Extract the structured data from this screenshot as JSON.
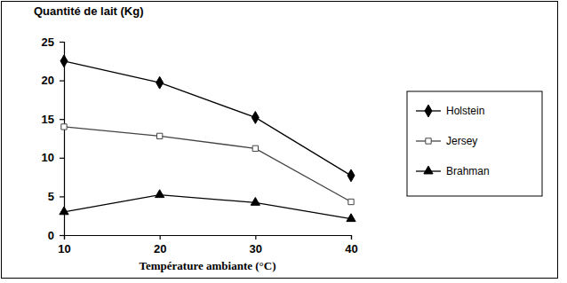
{
  "chart_data": {
    "type": "line",
    "y_label": "Quantité de lait (Kg)",
    "x_label": "Température ambiante (°C)",
    "x": [
      10,
      20,
      30,
      40
    ],
    "xlim": [
      10,
      40
    ],
    "xticks": [
      10,
      20,
      30,
      40
    ],
    "ylim": [
      0,
      25
    ],
    "yticks": [
      0,
      5,
      10,
      15,
      20,
      25
    ],
    "grid": false,
    "legend": "right",
    "series": [
      {
        "name": "Holstein",
        "color": "#000000",
        "marker": "diamond",
        "values": [
          22.5,
          19.7,
          15.2,
          7.7
        ]
      },
      {
        "name": "Jersey",
        "color": "#444444",
        "marker": "square-open",
        "values": [
          14,
          12.8,
          11.2,
          4.3
        ]
      },
      {
        "name": "Brahman",
        "color": "#000000",
        "marker": "triangle",
        "values": [
          3,
          5.2,
          4.2,
          2.1
        ]
      }
    ]
  }
}
